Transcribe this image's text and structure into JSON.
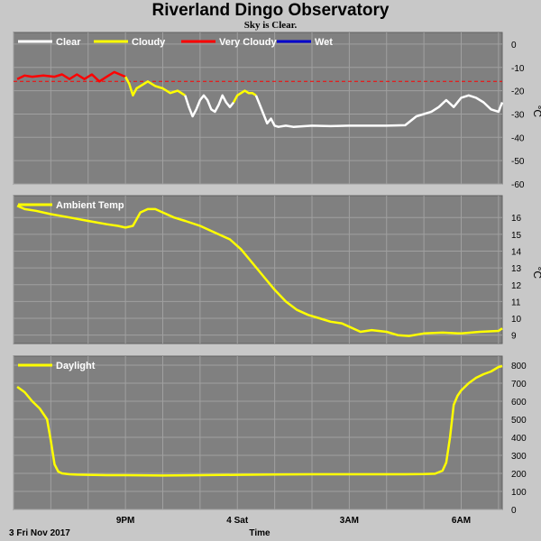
{
  "title": "Riverland Dingo Observatory",
  "subtitle": "Sky is Clear.",
  "xlabel": "Time",
  "date_label": "3 Fri Nov 2017",
  "colors": {
    "background": "#c8c8c8",
    "panel": "#808080",
    "grid": "#a0a0a0",
    "clear": "#ffffff",
    "cloudy": "#ffff00",
    "very_cloudy": "#ff0000",
    "wet": "#0000cc",
    "threshold": "#ff0000"
  },
  "chart_data": [
    {
      "type": "line",
      "id": "sky",
      "unit": "°C",
      "ylim": [
        -60,
        5
      ],
      "yticks": [
        0,
        -10,
        -20,
        -30,
        -40,
        -50,
        -60
      ],
      "x_range": [
        18.0,
        31.1
      ],
      "xticks": [
        {
          "x": 21,
          "label": "9PM"
        },
        {
          "x": 24,
          "label": "4 Sat"
        },
        {
          "x": 27,
          "label": "3AM"
        },
        {
          "x": 30,
          "label": "6AM"
        }
      ],
      "legend": [
        {
          "name": "Clear",
          "color": "#ffffff"
        },
        {
          "name": "Cloudy",
          "color": "#ffff00"
        },
        {
          "name": "Very Cloudy",
          "color": "#ff0000"
        },
        {
          "name": "Wet",
          "color": "#0000cc"
        }
      ],
      "thresholds": [
        -16
      ],
      "segments": [
        {
          "category": "Very Cloudy",
          "color": "#ff0000",
          "x": [
            18.1,
            18.3,
            18.5,
            18.8,
            19.1,
            19.3,
            19.5,
            19.7,
            19.9,
            20.1,
            20.3,
            20.5,
            20.7,
            20.85,
            21.0
          ],
          "y": [
            -15,
            -13.5,
            -14,
            -13.5,
            -14,
            -13,
            -15,
            -13,
            -15,
            -13,
            -16,
            -14,
            -12,
            -13,
            -14
          ]
        },
        {
          "category": "Cloudy",
          "color": "#ffff00",
          "x": [
            21.0,
            21.1,
            21.2,
            21.3,
            21.4,
            21.5,
            21.6,
            21.7,
            21.8,
            22.0,
            22.2,
            22.4,
            22.6
          ],
          "y": [
            -14,
            -17,
            -22,
            -19,
            -18,
            -17,
            -16,
            -17,
            -18,
            -19,
            -21,
            -20,
            -22
          ]
        },
        {
          "category": "Clear",
          "color": "#ffffff",
          "x": [
            22.6,
            22.7,
            22.8,
            22.9,
            23.0,
            23.1,
            23.2,
            23.3,
            23.4,
            23.5,
            23.6,
            23.7,
            23.8,
            23.9
          ],
          "y": [
            -22,
            -27,
            -31,
            -28,
            -24,
            -22,
            -24,
            -28,
            -29,
            -26,
            -22,
            -25,
            -27,
            -25
          ]
        },
        {
          "category": "Cloudy",
          "color": "#ffff00",
          "x": [
            23.9,
            24.0,
            24.1,
            24.2,
            24.3,
            24.4,
            24.5
          ],
          "y": [
            -25,
            -22,
            -21,
            -20,
            -21,
            -21,
            -22
          ]
        },
        {
          "category": "Clear",
          "color": "#ffffff",
          "x": [
            24.5,
            24.6,
            24.7,
            24.8,
            24.9,
            25.0,
            25.1,
            25.3,
            25.5,
            26.0,
            26.5,
            27.0,
            27.5,
            28.0,
            28.5,
            28.8,
            29.0,
            29.2,
            29.4,
            29.6,
            29.8,
            30.0,
            30.2,
            30.4,
            30.6,
            30.8,
            31.0,
            31.1
          ],
          "y": [
            -22,
            -26,
            -30,
            -34,
            -32,
            -35,
            -35.5,
            -35,
            -35.5,
            -35,
            -35.2,
            -35,
            -35,
            -35,
            -34.8,
            -31,
            -30,
            -29,
            -27,
            -24,
            -27,
            -23,
            -22,
            -23,
            -25,
            -28,
            -29,
            -25
          ]
        }
      ]
    },
    {
      "type": "line",
      "id": "ambient",
      "unit": "°C",
      "ylim": [
        8.5,
        17.3
      ],
      "yticks": [
        9,
        10,
        11,
        12,
        13,
        14,
        15,
        16
      ],
      "x_range": [
        18.0,
        31.1
      ],
      "xticks": [
        {
          "x": 21,
          "label": "9PM"
        },
        {
          "x": 24,
          "label": "4 Sat"
        },
        {
          "x": 27,
          "label": "3AM"
        },
        {
          "x": 30,
          "label": "6AM"
        }
      ],
      "series": [
        {
          "name": "Ambient Temp",
          "color": "#ffff00",
          "x": [
            18.1,
            18.3,
            18.6,
            19.0,
            19.5,
            20.0,
            20.5,
            20.8,
            21.0,
            21.2,
            21.4,
            21.6,
            21.8,
            22.0,
            22.3,
            22.6,
            23.0,
            23.4,
            23.8,
            24.1,
            24.4,
            24.7,
            25.0,
            25.3,
            25.6,
            25.9,
            26.2,
            26.5,
            26.8,
            27.0,
            27.3,
            27.6,
            28.0,
            28.3,
            28.6,
            29.0,
            29.5,
            30.0,
            30.5,
            31.0,
            31.1
          ],
          "y": [
            16.7,
            16.5,
            16.4,
            16.2,
            16.0,
            15.8,
            15.6,
            15.5,
            15.4,
            15.5,
            16.3,
            16.5,
            16.5,
            16.3,
            16.0,
            15.8,
            15.5,
            15.1,
            14.7,
            14.1,
            13.3,
            12.5,
            11.7,
            11.0,
            10.5,
            10.2,
            10.0,
            9.8,
            9.7,
            9.5,
            9.2,
            9.3,
            9.2,
            9.0,
            8.95,
            9.1,
            9.15,
            9.1,
            9.2,
            9.25,
            9.4
          ]
        }
      ]
    },
    {
      "type": "line",
      "id": "daylight",
      "ylim": [
        0,
        850
      ],
      "yticks": [
        0,
        100,
        200,
        300,
        400,
        500,
        600,
        700,
        800
      ],
      "x_range": [
        18.0,
        31.1
      ],
      "xticks": [
        {
          "x": 21,
          "label": "9PM"
        },
        {
          "x": 24,
          "label": "4 Sat"
        },
        {
          "x": 27,
          "label": "3AM"
        },
        {
          "x": 30,
          "label": "6AM"
        }
      ],
      "series": [
        {
          "name": "Daylight",
          "color": "#ffff00",
          "x": [
            18.1,
            18.3,
            18.5,
            18.7,
            18.9,
            19.0,
            19.1,
            19.2,
            19.3,
            19.5,
            19.7,
            20.0,
            20.5,
            21.0,
            22.0,
            23.0,
            24.0,
            25.0,
            26.0,
            27.0,
            28.0,
            28.5,
            29.0,
            29.3,
            29.5,
            29.6,
            29.7,
            29.8,
            29.9,
            30.0,
            30.2,
            30.4,
            30.6,
            30.8,
            31.0,
            31.1
          ],
          "y": [
            680,
            650,
            600,
            560,
            500,
            380,
            250,
            210,
            200,
            195,
            193,
            192,
            190,
            190,
            188,
            190,
            192,
            194,
            195,
            195,
            195,
            195,
            196,
            198,
            215,
            260,
            400,
            580,
            630,
            660,
            700,
            730,
            750,
            765,
            790,
            795
          ]
        }
      ]
    }
  ]
}
